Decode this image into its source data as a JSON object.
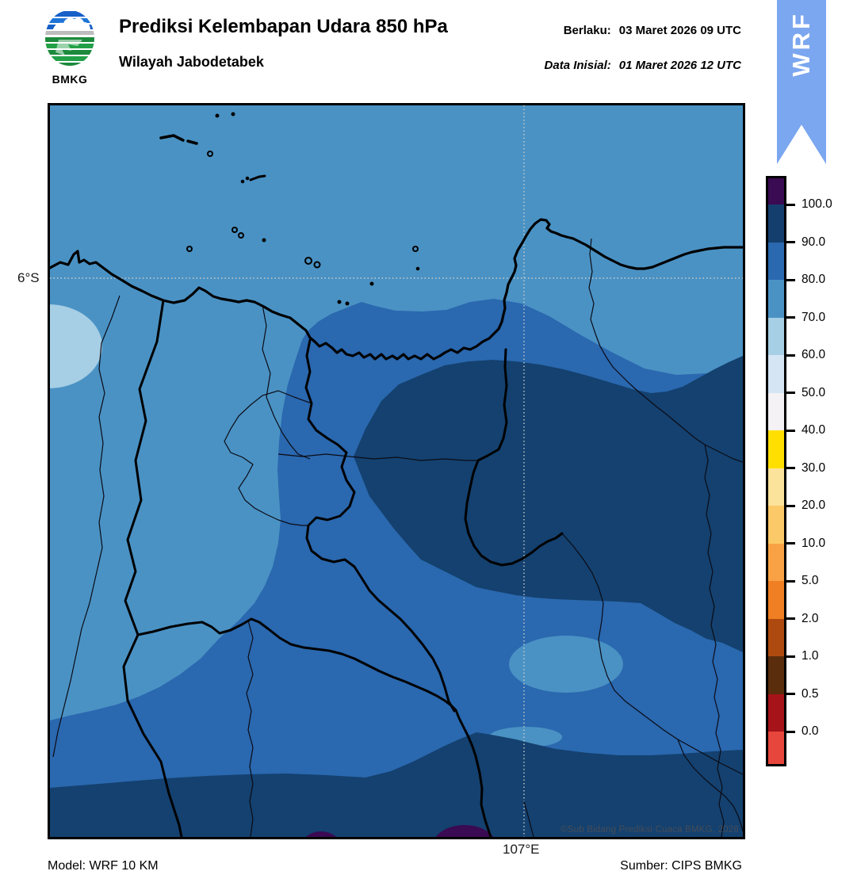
{
  "header": {
    "logo_text": "BMKG",
    "title": "Prediksi Kelembapan Udara 850 hPa",
    "subtitle": "Wilayah Jabodetabek",
    "valid": {
      "label": "Berlaku:",
      "value": "03 Maret 2026 09 UTC"
    },
    "initial": {
      "label": "Data Inisial:",
      "value": "01 Maret 2026 12 UTC"
    },
    "ribbon_label": "WRF",
    "ribbon_color": "#7BA6F0"
  },
  "map": {
    "lat_label": "6°S",
    "lon_label": "107°E",
    "watermark": "©Sub Bidang Prediksi Cuaca BMKG, 2026",
    "palette": {
      "rh_60_70": "#A6CEE4",
      "rh_70_80": "#4A92C4",
      "rh_80_90": "#2A68AF",
      "rh_90_100": "#14416F",
      "rh_over_100": "#3A0A52",
      "coastline": "#000000",
      "boundary": "#0B0B16",
      "gridline": "#C9CDC9"
    }
  },
  "colorbar": {
    "tick_labels": [
      "100.0",
      "90.0",
      "80.0",
      "70.0",
      "60.0",
      "50.0",
      "40.0",
      "30.0",
      "20.0",
      "10.0",
      "5.0",
      "2.0",
      "1.0",
      "0.5",
      "0.0"
    ],
    "segment_colors": [
      "#3A0A52",
      "#143E6D",
      "#2A68AF",
      "#4A92C4",
      "#A6CEE4",
      "#D6E5F4",
      "#F4F2F5",
      "#FFDF00",
      "#FBE39B",
      "#FBC967",
      "#F9A245",
      "#F07E22",
      "#AE4A0F",
      "#5A2D0D",
      "#A61319",
      "#E6463C"
    ]
  },
  "footer": {
    "model": "Model: WRF 10 KM",
    "source": "Sumber: CIPS BMKG"
  },
  "chart_data": {
    "type": "heatmap",
    "title": "Prediksi Kelembapan Udara 850 hPa",
    "region": "Wilayah Jabodetabek",
    "valid_time": "03 Maret 2026 09 UTC",
    "initial_time": "01 Maret 2026 12 UTC",
    "model": "WRF 10 KM",
    "levels": [
      0.0,
      0.5,
      1.0,
      2.0,
      5.0,
      10.0,
      20.0,
      30.0,
      40.0,
      50.0,
      60.0,
      70.0,
      80.0,
      90.0,
      100.0
    ],
    "grid_labels": {
      "lat": "6°S",
      "lon": "107°E"
    },
    "field_summary": "Dominantly 70-100+ %RH: 70-80 over NW sea and W land, 80-90 band across center and east, 90-100 core over center-east and along south edge, small 60-70 pockets at W edge and center-east, >100 pockets at S edge"
  }
}
